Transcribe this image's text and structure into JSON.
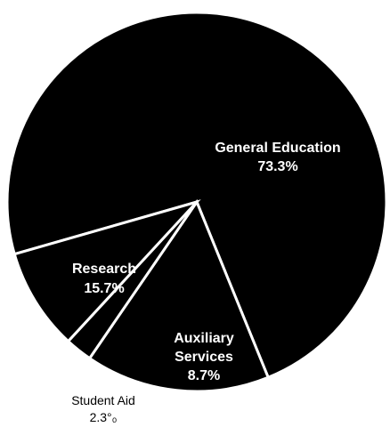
{
  "chart_data": {
    "type": "pie",
    "title": "",
    "slices": [
      {
        "label": "General Education",
        "value": 73.3,
        "value_label": "73.3%"
      },
      {
        "label": "Research",
        "value": 15.7,
        "value_label": "15.7%"
      },
      {
        "label": "Student Aid",
        "value": 2.3,
        "value_label": "2.3°₀"
      },
      {
        "label": "Auxiliary Services",
        "label_lines": [
          "Auxiliary",
          "Services"
        ],
        "value": 8.7,
        "value_label": "8.7%"
      }
    ],
    "colors": {
      "fill": "#000000",
      "separator": "#ffffff",
      "outside_label": "#000000"
    }
  }
}
